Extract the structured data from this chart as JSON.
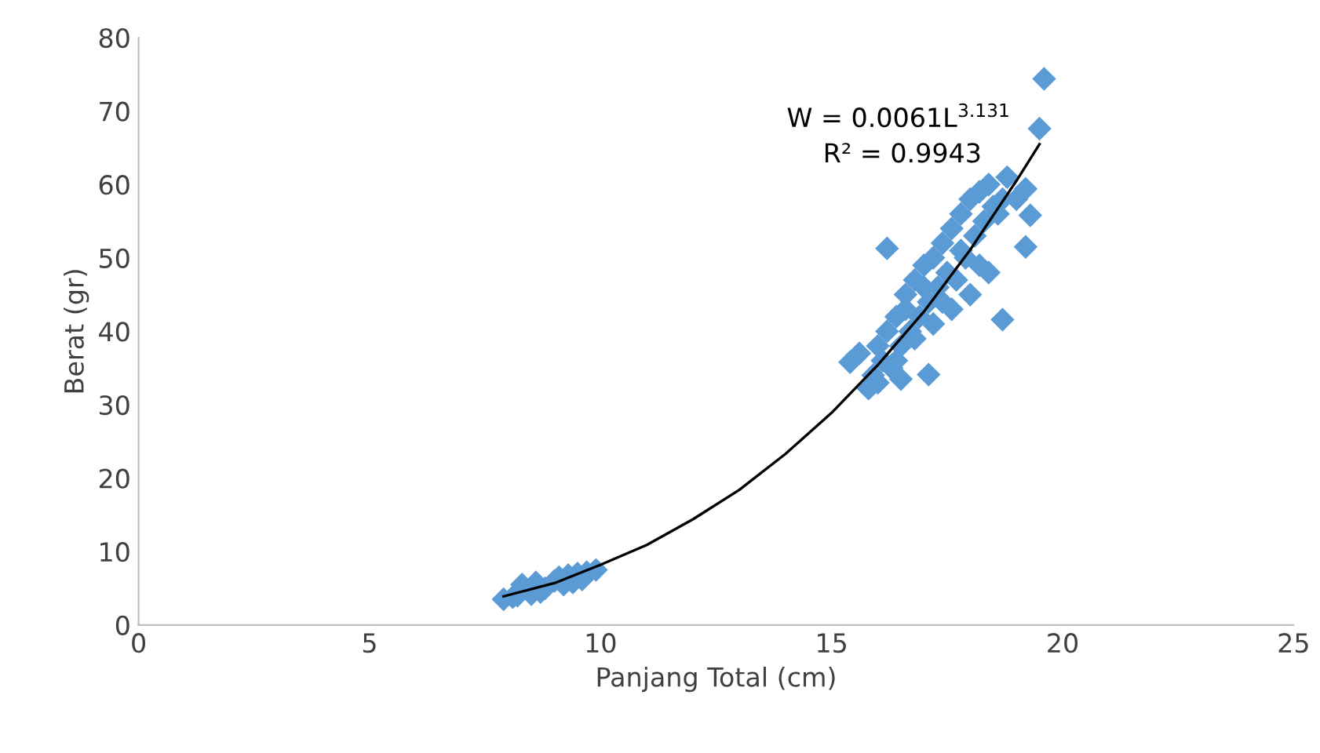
{
  "chart_data": {
    "type": "scatter",
    "xlabel": "Panjang Total (cm)",
    "ylabel": "Berat (gr)",
    "xlim": [
      0,
      25
    ],
    "xticks": [
      0,
      5,
      10,
      15,
      20,
      25
    ],
    "ylim": [
      0,
      80
    ],
    "yticks": [
      0,
      10,
      20,
      30,
      40,
      50,
      60,
      70,
      80
    ],
    "grid": false,
    "legend": false,
    "annotations": [
      "W = 0.0061L$^{3.131}$",
      "R² = 0.9943"
    ],
    "series": [
      {
        "color": "#5b9bd5",
        "marker": "diamond",
        "x": [
          7.9,
          8.1,
          8.2,
          8.3,
          8.5,
          8.6,
          8.7,
          8.8,
          9.0,
          9.1,
          9.2,
          9.3,
          9.4,
          9.5,
          9.6,
          9.7,
          9.9,
          15.4,
          15.8,
          15.6,
          15.9,
          16.0,
          16.1,
          16.2,
          16.3,
          16.4,
          16.5,
          16.6,
          16.7,
          16.8,
          16.9,
          17.0,
          17.1,
          17.2,
          17.3,
          17.4,
          17.5,
          17.6,
          17.7,
          17.8,
          17.9,
          18.0,
          18.1,
          18.2,
          18.3,
          18.4,
          18.5,
          18.6,
          18.7,
          18.8,
          19.0,
          19.2,
          19.3,
          19.2,
          19.5,
          19.6,
          16.2,
          17.1,
          18.7,
          16.4,
          16.8,
          17.2,
          17.6,
          18.0,
          18.4,
          16.6,
          17.0,
          17.4,
          17.8,
          18.2,
          16.0,
          16.5
        ],
        "values": [
          3.5,
          3.8,
          4.0,
          5.5,
          4.2,
          5.8,
          4.5,
          5.0,
          6.0,
          6.5,
          5.5,
          6.8,
          5.8,
          7.0,
          6.2,
          7.2,
          7.5,
          35.8,
          32.2,
          37.0,
          34.0,
          38.0,
          36.0,
          40.0,
          35.0,
          42.0,
          38.0,
          45.0,
          40.0,
          47.0,
          42.0,
          49.0,
          44.0,
          50.0,
          46.0,
          52.0,
          48.0,
          54.0,
          47.0,
          56.0,
          50.0,
          58.0,
          53.0,
          59.0,
          55.0,
          60.0,
          57.0,
          56.0,
          58.0,
          61.0,
          58.0,
          51.5,
          55.8,
          59.4,
          67.6,
          74.4,
          51.3,
          34.1,
          41.6,
          36.0,
          39.0,
          41.0,
          43.0,
          45.0,
          48.0,
          43.0,
          46.0,
          44.0,
          51.0,
          49.0,
          33.0,
          33.5
        ]
      },
      {
        "type": "line",
        "color": "#000000",
        "marker": "none",
        "x": [
          7.9,
          9,
          10,
          11,
          12,
          13,
          14,
          15,
          16,
          17,
          18,
          19,
          19.5
        ],
        "values": [
          3.9,
          5.7,
          8.2,
          10.9,
          14.4,
          18.4,
          23.3,
          28.9,
          35.4,
          42.7,
          51.1,
          60.5,
          65.5
        ]
      }
    ]
  }
}
